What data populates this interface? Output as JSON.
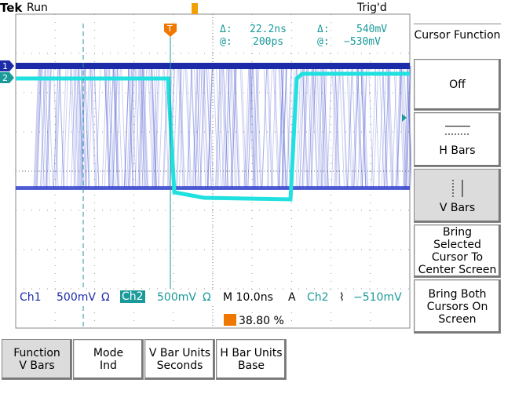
{
  "header": {
    "brand": "Tek",
    "status": "Run",
    "trigger_status": "Trig'd"
  },
  "markers": {
    "ch1": "1",
    "ch2": "2",
    "trigger": "T"
  },
  "readout": {
    "time_delta_label": "Δ:",
    "time_delta": "22.2ns",
    "time_at_label": "@:",
    "time_at": "200ps",
    "volt_delta_label": "Δ:",
    "volt_delta": "540mV",
    "volt_at_label": "@:",
    "volt_at": "−530mV"
  },
  "status_bar": {
    "ch1": "Ch1",
    "ch1_scale": "500mV",
    "ch1_impedance": "Ω",
    "ch2": "Ch2",
    "ch2_scale": "500mV",
    "ch2_impedance": "Ω",
    "timebase": "M 10.0ns",
    "mode": "A",
    "trigger_source": "Ch2",
    "trigger_slope": "⌇",
    "trigger_level": "−510mV",
    "trigger_position": "38.80 %"
  },
  "side_menu": {
    "title": "Cursor Function",
    "items": [
      "Off",
      "H Bars",
      "V Bars",
      "Bring Selected Cursor To Center Screen",
      "Bring Both Cursors On Screen"
    ]
  },
  "bottom_menu": [
    {
      "label": "Function",
      "value": "V Bars"
    },
    {
      "label": "Mode",
      "value": "Ind"
    },
    {
      "label": "V Bar Units",
      "value": "Seconds"
    },
    {
      "label": "H Bar Units",
      "value": "Base"
    }
  ]
}
